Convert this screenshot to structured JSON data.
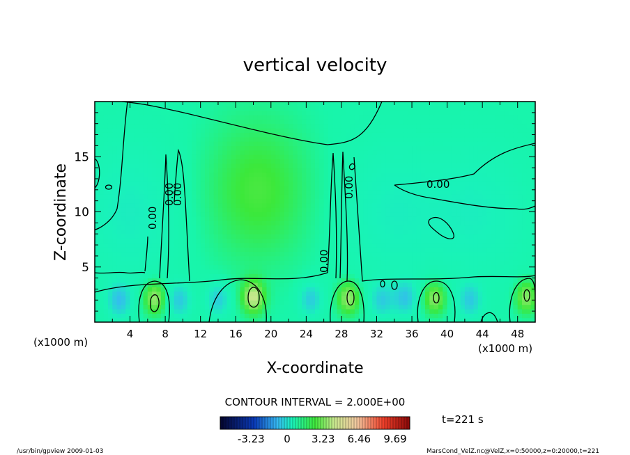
{
  "chart_data": {
    "type": "heatmap",
    "title": "vertical velocity",
    "xlabel": "X-coordinate",
    "ylabel": "Z-coordinate",
    "x_unit_left": "(x1000 m)",
    "x_unit_right": "(x1000 m)",
    "xlim": [
      0,
      50
    ],
    "ylim": [
      0,
      20
    ],
    "x_ticks": [
      "4",
      "8",
      "12",
      "16",
      "20",
      "24",
      "28",
      "32",
      "36",
      "40",
      "44",
      "48"
    ],
    "y_ticks": [
      "5",
      "10",
      "15"
    ],
    "contour_labels": [
      "0.00",
      "0.00",
      "0.00",
      "0.00",
      "0.00",
      "0.00"
    ],
    "contour_interval_text": "CONTOUR INTERVAL = 2.000E+00",
    "colorbar": {
      "ticks": [
        "-3.23",
        "0",
        "3.23",
        "6.46",
        "9.69"
      ],
      "values": [
        -3.23,
        0,
        3.23,
        6.46,
        9.69
      ],
      "min": -6.0,
      "max": 11.0
    },
    "time_label": "t=221 s",
    "updrafts": [
      {
        "x": 6.8,
        "z": 2.2,
        "w": 2.6
      },
      {
        "x": 18.0,
        "z": 2.3,
        "w": 3.0
      },
      {
        "x": 28.8,
        "z": 2.2,
        "w": 2.6
      },
      {
        "x": 38.6,
        "z": 2.2,
        "w": 2.5
      },
      {
        "x": 49.0,
        "z": 2.3,
        "w": 2.4
      },
      {
        "x": 18.5,
        "z": 12.0,
        "w": 1.5
      }
    ],
    "downdrafts": [
      {
        "x": 2.8,
        "z": 2.0,
        "w": -2.0
      },
      {
        "x": 9.6,
        "z": 2.0,
        "w": -1.8
      },
      {
        "x": 14.0,
        "z": 2.1,
        "w": -1.8
      },
      {
        "x": 24.5,
        "z": 2.1,
        "w": -1.8
      },
      {
        "x": 32.6,
        "z": 2.0,
        "w": -1.6
      },
      {
        "x": 35.2,
        "z": 2.2,
        "w": -1.8
      },
      {
        "x": 42.6,
        "z": 2.0,
        "w": -1.7
      },
      {
        "x": 4.0,
        "z": 10.0,
        "w": -0.9
      },
      {
        "x": 33.5,
        "z": 10.0,
        "w": -0.8
      },
      {
        "x": 43.5,
        "z": 10.0,
        "w": -0.8
      }
    ]
  },
  "footer": {
    "left": "/usr/bin/gpview   2009-01-03",
    "right": "MarsCond_VelZ.nc@VelZ,x=0:50000,z=0:20000,t=221"
  }
}
